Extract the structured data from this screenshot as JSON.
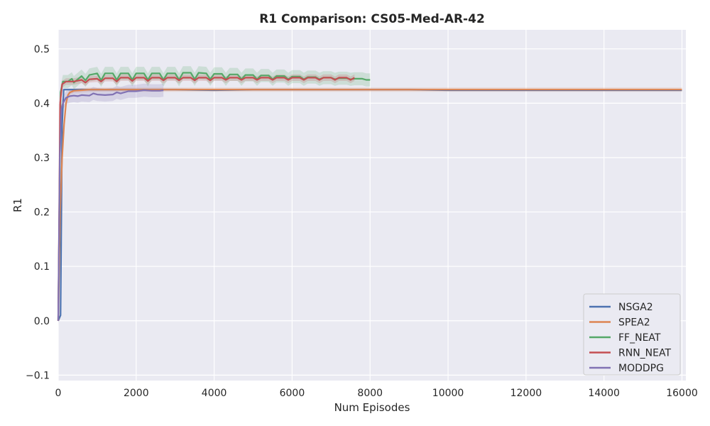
{
  "chart_data": {
    "type": "line",
    "title": "R1 Comparison: CS05-Med-AR-42",
    "xlabel": "Num Episodes",
    "ylabel": "R1",
    "xlim": [
      0,
      16100
    ],
    "ylim": [
      -0.11,
      0.535
    ],
    "xticks": [
      0,
      2000,
      4000,
      6000,
      8000,
      10000,
      12000,
      14000,
      16000
    ],
    "yticks": [
      -0.1,
      0.0,
      0.1,
      0.2,
      0.3,
      0.4,
      0.5
    ],
    "ytick_labels": [
      "−0.1",
      "0.0",
      "0.1",
      "0.2",
      "0.3",
      "0.4",
      "0.5"
    ],
    "grid": true,
    "legend_position": "lower right",
    "series": [
      {
        "name": "NSGA2",
        "color": "#4c72b0",
        "x": [
          0,
          60,
          100,
          140,
          200,
          400,
          800,
          1200,
          2000,
          3000,
          4000,
          5000,
          6000,
          7000,
          8000,
          9000,
          10000,
          11000,
          12000,
          13000,
          14000,
          15000,
          16000
        ],
        "y": [
          0.0,
          0.01,
          0.36,
          0.425,
          0.425,
          0.425,
          0.425,
          0.425,
          0.425,
          0.425,
          0.424,
          0.425,
          0.425,
          0.425,
          0.425,
          0.425,
          0.424,
          0.424,
          0.424,
          0.424,
          0.424,
          0.424,
          0.424
        ],
        "band": 0.002
      },
      {
        "name": "SPEA2",
        "color": "#dd8452",
        "x": [
          0,
          50,
          100,
          150,
          200,
          250,
          300,
          400,
          600,
          800,
          1200,
          2000,
          3000,
          4000,
          5000,
          6000,
          7000,
          8000,
          9000,
          10000,
          11000,
          12000,
          13000,
          14000,
          15000,
          16000
        ],
        "y": [
          0.0,
          0.2,
          0.3,
          0.36,
          0.4,
          0.415,
          0.42,
          0.423,
          0.424,
          0.425,
          0.425,
          0.425,
          0.425,
          0.425,
          0.425,
          0.425,
          0.425,
          0.425,
          0.425,
          0.425,
          0.425,
          0.425,
          0.425,
          0.425,
          0.425,
          0.425
        ],
        "band": 0.004
      },
      {
        "name": "FF_NEAT",
        "color": "#55a868",
        "x": [
          0,
          60,
          120,
          250,
          350,
          400,
          600,
          700,
          800,
          1000,
          1100,
          1200,
          1400,
          1500,
          1600,
          1800,
          1900,
          2000,
          2200,
          2300,
          2400,
          2600,
          2700,
          2800,
          3000,
          3100,
          3200,
          3400,
          3500,
          3600,
          3800,
          3900,
          4000,
          4200,
          4300,
          4400,
          4600,
          4700,
          4800,
          5000,
          5100,
          5200,
          5400,
          5500,
          5600,
          5800,
          5900,
          6000,
          6200,
          6300,
          6400,
          6600,
          6700,
          6800,
          7000,
          7100,
          7200,
          7400,
          7500,
          7600,
          7800,
          7900,
          8000
        ],
        "y": [
          0.0,
          0.42,
          0.44,
          0.44,
          0.445,
          0.438,
          0.45,
          0.442,
          0.452,
          0.455,
          0.442,
          0.455,
          0.455,
          0.443,
          0.455,
          0.455,
          0.443,
          0.455,
          0.455,
          0.443,
          0.455,
          0.455,
          0.443,
          0.455,
          0.455,
          0.443,
          0.456,
          0.456,
          0.444,
          0.456,
          0.455,
          0.444,
          0.454,
          0.454,
          0.444,
          0.453,
          0.453,
          0.444,
          0.452,
          0.452,
          0.444,
          0.451,
          0.451,
          0.444,
          0.45,
          0.45,
          0.444,
          0.449,
          0.449,
          0.444,
          0.448,
          0.448,
          0.444,
          0.447,
          0.447,
          0.444,
          0.446,
          0.446,
          0.444,
          0.445,
          0.445,
          0.443,
          0.443
        ],
        "band": 0.012
      },
      {
        "name": "RNN_NEAT",
        "color": "#c44e52",
        "x": [
          0,
          50,
          100,
          200,
          400,
          600,
          700,
          800,
          1000,
          1100,
          1200,
          1400,
          1500,
          1600,
          1800,
          1900,
          2000,
          2200,
          2300,
          2400,
          2600,
          2700,
          2800,
          3000,
          3100,
          3200,
          3400,
          3500,
          3600,
          3800,
          3900,
          4000,
          4200,
          4300,
          4400,
          4600,
          4700,
          4800,
          5000,
          5100,
          5200,
          5400,
          5500,
          5600,
          5800,
          5900,
          6000,
          6200,
          6300,
          6400,
          6600,
          6700,
          6800,
          7000,
          7100,
          7200,
          7400,
          7500,
          7600
        ],
        "y": [
          0.0,
          0.4,
          0.435,
          0.44,
          0.44,
          0.443,
          0.438,
          0.444,
          0.445,
          0.44,
          0.446,
          0.446,
          0.44,
          0.447,
          0.447,
          0.441,
          0.447,
          0.447,
          0.441,
          0.447,
          0.447,
          0.442,
          0.447,
          0.447,
          0.442,
          0.447,
          0.447,
          0.442,
          0.447,
          0.447,
          0.442,
          0.447,
          0.447,
          0.443,
          0.447,
          0.447,
          0.443,
          0.447,
          0.447,
          0.443,
          0.447,
          0.447,
          0.443,
          0.447,
          0.447,
          0.443,
          0.447,
          0.447,
          0.443,
          0.447,
          0.447,
          0.443,
          0.447,
          0.447,
          0.443,
          0.447,
          0.447,
          0.443,
          0.447
        ],
        "band": 0.006
      },
      {
        "name": "MODDPG",
        "color": "#8172b3",
        "x": [
          0,
          40,
          80,
          120,
          160,
          200,
          300,
          400,
          500,
          600,
          800,
          900,
          1000,
          1200,
          1400,
          1500,
          1600,
          1800,
          2000,
          2200,
          2400,
          2600,
          2700
        ],
        "y": [
          0.0,
          0.3,
          0.39,
          0.4,
          0.405,
          0.41,
          0.413,
          0.414,
          0.413,
          0.415,
          0.414,
          0.418,
          0.416,
          0.415,
          0.416,
          0.42,
          0.418,
          0.422,
          0.422,
          0.424,
          0.423,
          0.423,
          0.424
        ],
        "band": 0.012
      }
    ]
  }
}
